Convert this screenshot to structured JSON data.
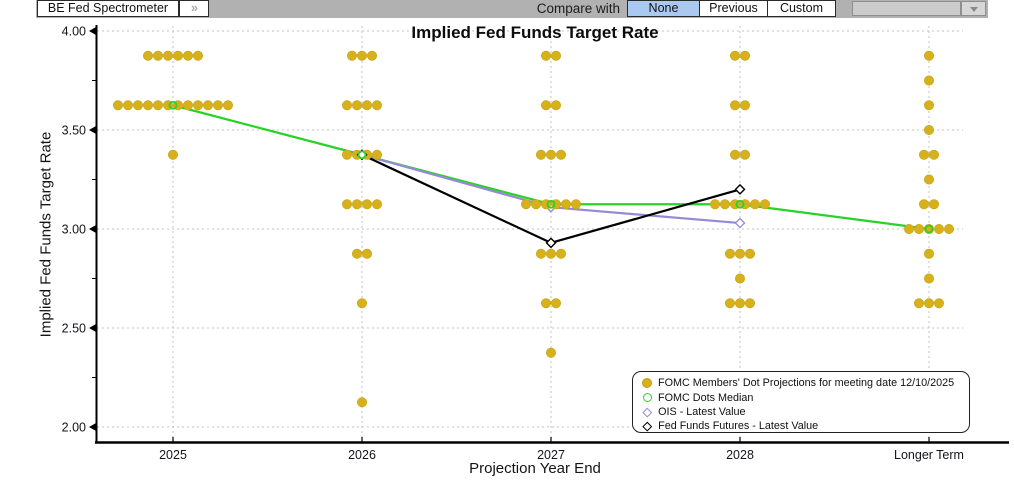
{
  "toolbar": {
    "app_button": "BE Fed Spectrometer",
    "expand_glyph": "»",
    "compare_label": "Compare with",
    "options": [
      "None",
      "Previous",
      "Custom"
    ],
    "selected": "None",
    "dropdown_value": "",
    "colors": {
      "bar": "#b1b1b1",
      "selected_button": "#a9c9f1"
    }
  },
  "chart_data": {
    "type": "scatter",
    "title": "Implied Fed Funds Target Rate",
    "xlabel": "Projection Year End",
    "ylabel": "Implied Fed Funds Target Rate",
    "ylim": [
      2.0,
      4.0
    ],
    "yticks": [
      4.0,
      3.5,
      3.0,
      2.5,
      2.0
    ],
    "y_minor_ticks": [
      3.75,
      3.25,
      2.75,
      2.25
    ],
    "categories": [
      "2025",
      "2026",
      "2027",
      "2028",
      "Longer Term"
    ],
    "grid": "dashed",
    "legend_position": "bottom-right",
    "dot_projections": {
      "name": "FOMC Members' Dot Projections for meeting date 12/10/2025",
      "color": "#d6b11c",
      "counts_by_year": [
        [
          [
            3.875,
            6
          ],
          [
            3.625,
            12
          ],
          [
            3.375,
            1
          ]
        ],
        [
          [
            3.875,
            3
          ],
          [
            3.625,
            4
          ],
          [
            3.375,
            4
          ],
          [
            3.125,
            4
          ],
          [
            2.875,
            2
          ],
          [
            2.625,
            1
          ],
          [
            2.125,
            1
          ]
        ],
        [
          [
            3.875,
            2
          ],
          [
            3.625,
            2
          ],
          [
            3.375,
            3
          ],
          [
            3.125,
            6
          ],
          [
            2.875,
            3
          ],
          [
            2.625,
            2
          ],
          [
            2.375,
            1
          ]
        ],
        [
          [
            3.875,
            2
          ],
          [
            3.625,
            2
          ],
          [
            3.375,
            2
          ],
          [
            3.125,
            6
          ],
          [
            2.875,
            3
          ],
          [
            2.75,
            1
          ],
          [
            2.625,
            3
          ]
        ],
        [
          [
            3.875,
            1
          ],
          [
            3.75,
            1
          ],
          [
            3.625,
            1
          ],
          [
            3.5,
            1
          ],
          [
            3.375,
            2
          ],
          [
            3.25,
            1
          ],
          [
            3.125,
            2
          ],
          [
            3.0,
            5
          ],
          [
            2.875,
            1
          ],
          [
            2.75,
            1
          ],
          [
            2.625,
            3
          ]
        ]
      ]
    },
    "series": [
      {
        "name": "FOMC Dots Median",
        "color": "#28d228",
        "marker": "open-circle",
        "x": [
          0,
          1,
          2,
          3,
          4
        ],
        "values": [
          3.625,
          3.375,
          3.125,
          3.125,
          3.0
        ]
      },
      {
        "name": "OIS - Latest Value",
        "color": "#978ad5",
        "marker": "open-diamond",
        "x": [
          1,
          2,
          3
        ],
        "values": [
          3.375,
          3.11,
          3.03
        ]
      },
      {
        "name": "Fed Funds Futures - Latest Value",
        "color": "#000000",
        "marker": "open-diamond",
        "x": [
          1,
          2,
          3
        ],
        "values": [
          3.375,
          2.93,
          3.2
        ]
      }
    ],
    "legend": [
      {
        "marker": "filled-circle",
        "color": "#d6b11c",
        "label": "FOMC Members' Dot Projections for meeting date 12/10/2025"
      },
      {
        "marker": "open-circle",
        "color": "#28d228",
        "label": "FOMC Dots Median"
      },
      {
        "marker": "open-diamond",
        "color": "#978ad5",
        "label": "OIS - Latest Value"
      },
      {
        "marker": "open-diamond",
        "color": "#000000",
        "label": "Fed Funds Futures - Latest Value"
      }
    ]
  }
}
